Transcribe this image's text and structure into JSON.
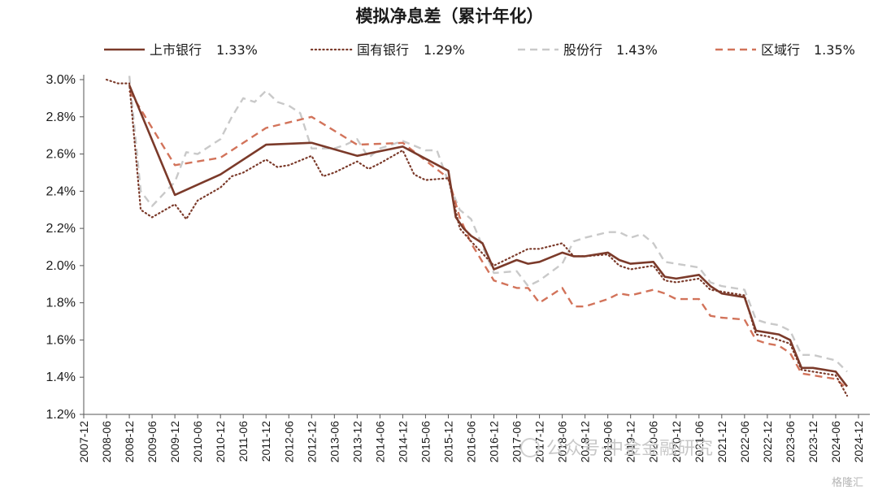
{
  "chart_data": {
    "type": "line",
    "title": "模拟净息差（累计年化）",
    "xlabel": "",
    "ylabel": "",
    "ylim": [
      1.2,
      3.0
    ],
    "yticks": [
      "1.2%",
      "1.4%",
      "1.6%",
      "1.8%",
      "2.0%",
      "2.2%",
      "2.4%",
      "2.6%",
      "2.8%",
      "3.0%"
    ],
    "xticks": [
      "2007-12",
      "2008-06",
      "2008-12",
      "2009-06",
      "2009-12",
      "2010-06",
      "2010-12",
      "2011-06",
      "2011-12",
      "2012-06",
      "2012-12",
      "2013-06",
      "2013-12",
      "2014-06",
      "2014-12",
      "2015-06",
      "2015-12",
      "2016-06",
      "2016-12",
      "2017-06",
      "2017-12",
      "2018-06",
      "2018-12",
      "2019-06",
      "2019-12",
      "2020-06",
      "2020-12",
      "2021-06",
      "2021-12",
      "2022-06",
      "2022-12",
      "2023-06",
      "2023-12",
      "2024-06",
      "2024-12"
    ],
    "grid": false,
    "legend_position": "top",
    "series": [
      {
        "name": "上市银行",
        "legend_value": "1.33%",
        "color": "#7b3a2a",
        "style": "solid",
        "points": [
          [
            2.0,
            2.97
          ],
          [
            4.0,
            2.38
          ],
          [
            6.0,
            2.49
          ],
          [
            8.0,
            2.65
          ],
          [
            10.0,
            2.66
          ],
          [
            12.0,
            2.59
          ],
          [
            14.0,
            2.64
          ],
          [
            16.0,
            2.51
          ],
          [
            16.33,
            2.26
          ],
          [
            16.67,
            2.2
          ],
          [
            17.0,
            2.16
          ],
          [
            17.5,
            2.12
          ],
          [
            18.0,
            1.98
          ],
          [
            19.0,
            2.03
          ],
          [
            19.5,
            2.01
          ],
          [
            20.0,
            2.02
          ],
          [
            21.0,
            2.07
          ],
          [
            21.5,
            2.05
          ],
          [
            22.0,
            2.05
          ],
          [
            23.0,
            2.07
          ],
          [
            23.5,
            2.03
          ],
          [
            24.0,
            2.01
          ],
          [
            25.0,
            2.02
          ],
          [
            25.5,
            1.94
          ],
          [
            26.0,
            1.93
          ],
          [
            27.0,
            1.95
          ],
          [
            27.5,
            1.89
          ],
          [
            28.0,
            1.85
          ],
          [
            29.0,
            1.83
          ],
          [
            29.5,
            1.65
          ],
          [
            30.0,
            1.64
          ],
          [
            30.5,
            1.63
          ],
          [
            31.0,
            1.6
          ],
          [
            31.5,
            1.45
          ],
          [
            32.0,
            1.45
          ],
          [
            33.0,
            1.43
          ],
          [
            33.5,
            1.35
          ]
        ]
      },
      {
        "name": "国有银行",
        "legend_value": "1.29%",
        "color": "#7b3a2a",
        "style": "dotted",
        "points": [
          [
            1.0,
            3.0
          ],
          [
            1.5,
            2.98
          ],
          [
            2.0,
            2.98
          ],
          [
            2.5,
            2.3
          ],
          [
            3.0,
            2.26
          ],
          [
            4.0,
            2.33
          ],
          [
            4.5,
            2.25
          ],
          [
            5.0,
            2.35
          ],
          [
            6.0,
            2.42
          ],
          [
            6.5,
            2.48
          ],
          [
            7.0,
            2.5
          ],
          [
            8.0,
            2.57
          ],
          [
            8.5,
            2.53
          ],
          [
            9.0,
            2.54
          ],
          [
            10.0,
            2.59
          ],
          [
            10.5,
            2.48
          ],
          [
            11.0,
            2.5
          ],
          [
            12.0,
            2.56
          ],
          [
            12.5,
            2.52
          ],
          [
            13.0,
            2.55
          ],
          [
            14.0,
            2.62
          ],
          [
            14.5,
            2.49
          ],
          [
            15.0,
            2.46
          ],
          [
            16.0,
            2.47
          ],
          [
            16.5,
            2.2
          ],
          [
            17.0,
            2.13
          ],
          [
            18.0,
            2.0
          ],
          [
            19.0,
            2.06
          ],
          [
            19.5,
            2.09
          ],
          [
            20.0,
            2.09
          ],
          [
            21.0,
            2.12
          ],
          [
            21.5,
            2.05
          ],
          [
            22.0,
            2.05
          ],
          [
            23.0,
            2.06
          ],
          [
            23.5,
            2.0
          ],
          [
            24.0,
            1.98
          ],
          [
            25.0,
            2.0
          ],
          [
            25.5,
            1.92
          ],
          [
            26.0,
            1.91
          ],
          [
            27.0,
            1.93
          ],
          [
            27.5,
            1.87
          ],
          [
            28.0,
            1.86
          ],
          [
            29.0,
            1.84
          ],
          [
            29.5,
            1.63
          ],
          [
            30.0,
            1.62
          ],
          [
            30.5,
            1.6
          ],
          [
            31.0,
            1.58
          ],
          [
            31.5,
            1.44
          ],
          [
            32.0,
            1.43
          ],
          [
            33.0,
            1.41
          ],
          [
            33.5,
            1.3
          ]
        ]
      },
      {
        "name": "股份行",
        "legend_value": "1.43%",
        "color": "#c9c9c9",
        "style": "dashed",
        "points": [
          [
            2.0,
            3.02
          ],
          [
            2.5,
            2.4
          ],
          [
            3.0,
            2.32
          ],
          [
            4.0,
            2.45
          ],
          [
            4.5,
            2.61
          ],
          [
            5.0,
            2.6
          ],
          [
            6.0,
            2.68
          ],
          [
            6.5,
            2.8
          ],
          [
            7.0,
            2.9
          ],
          [
            7.5,
            2.88
          ],
          [
            8.0,
            2.94
          ],
          [
            8.5,
            2.88
          ],
          [
            9.0,
            2.86
          ],
          [
            9.5,
            2.82
          ],
          [
            10.0,
            2.63
          ],
          [
            11.0,
            2.63
          ],
          [
            11.5,
            2.65
          ],
          [
            12.0,
            2.68
          ],
          [
            12.5,
            2.58
          ],
          [
            13.0,
            2.63
          ],
          [
            14.0,
            2.67
          ],
          [
            15.0,
            2.62
          ],
          [
            15.5,
            2.62
          ],
          [
            16.0,
            2.45
          ],
          [
            16.5,
            2.3
          ],
          [
            17.0,
            2.25
          ],
          [
            18.0,
            1.96
          ],
          [
            19.0,
            1.97
          ],
          [
            19.5,
            1.89
          ],
          [
            20.0,
            1.92
          ],
          [
            21.0,
            2.01
          ],
          [
            21.5,
            2.13
          ],
          [
            22.0,
            2.15
          ],
          [
            23.0,
            2.18
          ],
          [
            23.5,
            2.18
          ],
          [
            24.0,
            2.15
          ],
          [
            24.5,
            2.17
          ],
          [
            25.0,
            2.12
          ],
          [
            25.5,
            2.02
          ],
          [
            26.0,
            2.01
          ],
          [
            27.0,
            1.99
          ],
          [
            27.5,
            1.91
          ],
          [
            28.0,
            1.89
          ],
          [
            29.0,
            1.87
          ],
          [
            29.5,
            1.71
          ],
          [
            30.0,
            1.69
          ],
          [
            30.5,
            1.68
          ],
          [
            31.0,
            1.65
          ],
          [
            31.5,
            1.52
          ],
          [
            32.0,
            1.52
          ],
          [
            33.0,
            1.49
          ],
          [
            33.5,
            1.43
          ]
        ]
      },
      {
        "name": "区域行",
        "legend_value": "1.35%",
        "color": "#d2735a",
        "style": "dashed",
        "points": [
          [
            2.0,
            2.94
          ],
          [
            4.0,
            2.54
          ],
          [
            6.0,
            2.58
          ],
          [
            8.0,
            2.74
          ],
          [
            10.0,
            2.8
          ],
          [
            12.0,
            2.65
          ],
          [
            14.0,
            2.66
          ],
          [
            16.0,
            2.47
          ],
          [
            16.5,
            2.26
          ],
          [
            17.0,
            2.12
          ],
          [
            18.0,
            1.92
          ],
          [
            19.0,
            1.88
          ],
          [
            19.5,
            1.88
          ],
          [
            20.0,
            1.8
          ],
          [
            21.0,
            1.88
          ],
          [
            21.5,
            1.78
          ],
          [
            22.0,
            1.78
          ],
          [
            23.0,
            1.82
          ],
          [
            23.5,
            1.85
          ],
          [
            24.0,
            1.84
          ],
          [
            25.0,
            1.87
          ],
          [
            25.5,
            1.85
          ],
          [
            26.0,
            1.82
          ],
          [
            27.0,
            1.82
          ],
          [
            27.5,
            1.73
          ],
          [
            28.0,
            1.72
          ],
          [
            29.0,
            1.71
          ],
          [
            29.5,
            1.6
          ],
          [
            30.0,
            1.58
          ],
          [
            30.5,
            1.57
          ],
          [
            31.0,
            1.53
          ],
          [
            31.5,
            1.42
          ],
          [
            32.0,
            1.41
          ],
          [
            33.0,
            1.39
          ],
          [
            33.5,
            1.34
          ]
        ]
      }
    ]
  },
  "watermark": {
    "text": "公众号·中金金融研究",
    "brand": "格隆汇"
  }
}
